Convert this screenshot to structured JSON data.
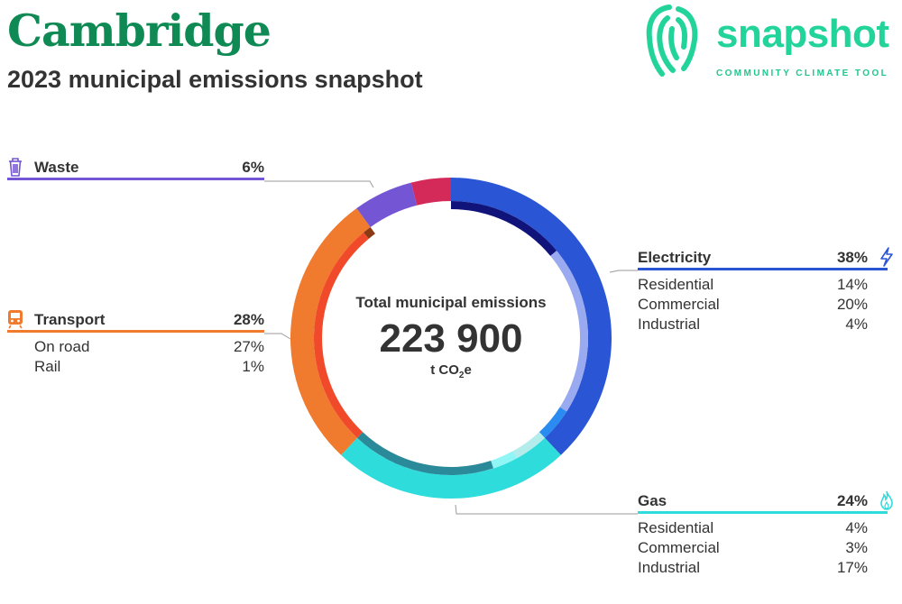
{
  "header": {
    "title": "Cambridge",
    "subtitle": "2023 municipal emissions snapshot"
  },
  "logo": {
    "wordmark": "snapshot",
    "tagline": "COMMUNITY CLIMATE TOOL",
    "icon": "fingerprint-logo-icon",
    "color": "#22d49a"
  },
  "chart_data": {
    "type": "donut",
    "center": {
      "label": "Total municipal emissions",
      "value": "223 900",
      "unit_prefix": "t CO",
      "unit_sub": "2",
      "unit_suffix": "e"
    },
    "categories": [
      {
        "key": "electricity",
        "name": "Electricity",
        "pct_label": "38%",
        "value": 38,
        "color": "#2a55d4",
        "icon": "lightning-icon",
        "sub": [
          {
            "name": "Residential",
            "pct_label": "14%",
            "value": 14,
            "color": "#10147a"
          },
          {
            "name": "Commercial",
            "pct_label": "20%",
            "value": 20,
            "color": "#9aaaf0"
          },
          {
            "name": "Industrial",
            "pct_label": "4%",
            "value": 4,
            "color": "#2a8cf0"
          }
        ]
      },
      {
        "key": "gas",
        "name": "Gas",
        "pct_label": "24%",
        "value": 24,
        "color": "#2fdcdc",
        "icon": "flame-icon",
        "sub": [
          {
            "name": "Residential",
            "pct_label": "4%",
            "value": 4,
            "color": "#b4ecec"
          },
          {
            "name": "Commercial",
            "pct_label": "3%",
            "value": 3,
            "color": "#8ff5f5"
          },
          {
            "name": "Industrial",
            "pct_label": "17%",
            "value": 17,
            "color": "#2a8a99"
          }
        ]
      },
      {
        "key": "transport",
        "name": "Transport",
        "pct_label": "28%",
        "value": 28,
        "color": "#f07a2e",
        "icon": "train-icon",
        "sub": [
          {
            "name": "On road",
            "pct_label": "27%",
            "value": 27,
            "color": "#f04a2a"
          },
          {
            "name": "Rail",
            "pct_label": "1%",
            "value": 1,
            "color": "#8a3a14"
          }
        ]
      },
      {
        "key": "waste",
        "name": "Waste",
        "pct_label": "6%",
        "value": 6,
        "color": "#7455d4",
        "icon": "trash-icon",
        "sub": []
      },
      {
        "key": "other",
        "name": "",
        "pct_label": "",
        "value": 4,
        "color": "#d42a5a",
        "icon": "",
        "sub": []
      }
    ]
  }
}
